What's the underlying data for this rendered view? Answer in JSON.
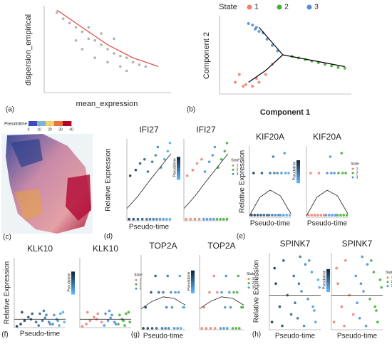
{
  "chart_data": [
    {
      "type": "scatter",
      "panel": "(a)",
      "x_label": "mean_expression",
      "y_label": "dispersion_empirical",
      "xlim": [
        0,
        1
      ],
      "ylim": [
        0,
        1
      ],
      "series": [
        {
          "color": "#a9a9a9",
          "x": [
            0.1,
            0.15,
            0.2,
            0.25,
            0.3,
            0.35,
            0.4,
            0.45,
            0.5,
            0.55,
            0.6,
            0.65,
            0.7,
            0.75,
            0.8,
            0.3,
            0.4,
            0.5,
            0.6,
            0.35,
            0.45,
            0.55,
            0.25,
            0.65
          ],
          "values": [
            0.92,
            0.85,
            0.8,
            0.75,
            0.7,
            0.62,
            0.6,
            0.55,
            0.5,
            0.45,
            0.42,
            0.4,
            0.35,
            0.32,
            0.3,
            0.5,
            0.4,
            0.35,
            0.3,
            0.75,
            0.68,
            0.62,
            0.6,
            0.25
          ]
        }
      ],
      "trends": [
        {
          "color": "#e8413a",
          "x": [
            0.1,
            0.3,
            0.5,
            0.7,
            0.9
          ],
          "values": [
            0.95,
            0.75,
            0.55,
            0.4,
            0.3
          ]
        }
      ]
    },
    {
      "type": "trajectory",
      "panel": "(b)",
      "x_label": "Component 1",
      "y_label": "Component 2",
      "legend_title": "State",
      "xlim": [
        0,
        1
      ],
      "ylim": [
        0,
        1
      ],
      "series": [
        {
          "name": "1",
          "color": "#f08070",
          "x": [
            0.12,
            0.15,
            0.2,
            0.25,
            0.3,
            0.35,
            0.4,
            0.18,
            0.28
          ],
          "values": [
            0.15,
            0.25,
            0.12,
            0.1,
            0.15,
            0.25,
            0.38,
            0.1,
            0.2
          ]
        },
        {
          "name": "2",
          "color": "#44b035",
          "x": [
            0.55,
            0.6,
            0.65,
            0.7,
            0.75,
            0.8,
            0.85,
            0.9,
            0.95
          ],
          "values": [
            0.48,
            0.46,
            0.44,
            0.42,
            0.4,
            0.38,
            0.36,
            0.34,
            0.33
          ]
        },
        {
          "name": "3",
          "color": "#4f8fdc",
          "x": [
            0.22,
            0.25,
            0.28,
            0.3,
            0.33,
            0.36,
            0.4,
            0.44,
            0.27
          ],
          "values": [
            0.9,
            0.88,
            0.85,
            0.8,
            0.78,
            0.7,
            0.62,
            0.55,
            0.83
          ]
        }
      ],
      "trends": [
        {
          "color": "#000000",
          "x": [
            0.22,
            0.35,
            0.48
          ],
          "values": [
            0.15,
            0.3,
            0.5
          ]
        },
        {
          "color": "#000000",
          "x": [
            0.48,
            0.95
          ],
          "values": [
            0.5,
            0.35
          ]
        },
        {
          "color": "#000000",
          "x": [
            0.48,
            0.3
          ],
          "values": [
            0.5,
            0.85
          ]
        }
      ]
    },
    {
      "type": "spatial",
      "panel": "(c)",
      "colorbar_title": "Pseudotime",
      "colorbar_ticks": [
        0,
        10,
        20,
        30,
        40
      ],
      "colorbar_colors": [
        "#3b4cc0",
        "#7fb3d5",
        "#f3d36b",
        "#e8743b",
        "#b40426"
      ]
    },
    {
      "type": "pseudotime",
      "panel": "(d)",
      "title": "IFI27",
      "x_label": "Pseudo-time",
      "y_label": "Relative Expression",
      "color_legend": "Pseudotime",
      "state_legend": "State",
      "xlim": [
        0,
        40
      ],
      "ylim": [
        0,
        1
      ],
      "pseudotime_colors": [
        "#132b43",
        "#56b1f7"
      ],
      "series": [
        {
          "name": "1",
          "color": "#f08070",
          "x": [
            2,
            6,
            10,
            14,
            3,
            8,
            12,
            16
          ],
          "values": [
            0.02,
            0.02,
            0.02,
            0.02,
            0.55,
            0.62,
            0.7,
            0.75
          ]
        },
        {
          "name": "2",
          "color": "#44b035",
          "x": [
            30,
            33,
            36,
            39,
            31,
            34,
            37,
            39
          ],
          "values": [
            0.02,
            0.02,
            0.02,
            0.02,
            0.65,
            0.75,
            0.85,
            0.95
          ]
        },
        {
          "name": "3",
          "color": "#4f8fdc",
          "x": [
            18,
            21,
            24,
            27,
            19,
            23,
            26,
            28
          ],
          "values": [
            0.02,
            0.02,
            0.02,
            0.02,
            0.6,
            0.72,
            0.8,
            0.9
          ]
        }
      ],
      "trends": [
        {
          "color": "#222222",
          "x": [
            0,
            10,
            20,
            30,
            40
          ],
          "values": [
            0.15,
            0.3,
            0.48,
            0.65,
            0.82
          ]
        }
      ]
    },
    {
      "type": "pseudotime",
      "panel": "(e)",
      "title": "KIF20A",
      "x_label": "Pseudo-time",
      "y_label": "Relative Expression",
      "color_legend": "Pseudotime",
      "state_legend": "State",
      "xlim": [
        0,
        40
      ],
      "ylim": [
        0,
        1
      ],
      "pseudotime_colors": [
        "#132b43",
        "#56b1f7"
      ],
      "series": [
        {
          "name": "1",
          "color": "#f08070",
          "x": [
            2,
            5,
            8,
            11,
            14,
            17,
            4,
            12
          ],
          "values": [
            0.03,
            0.03,
            0.03,
            0.03,
            0.03,
            0.03,
            0.62,
            0.62
          ]
        },
        {
          "name": "2",
          "color": "#44b035",
          "x": [
            30,
            33,
            36,
            39,
            31,
            35,
            38,
            34
          ],
          "values": [
            0.03,
            0.03,
            0.03,
            0.03,
            0.62,
            0.62,
            0.62,
            0.9
          ]
        },
        {
          "name": "3",
          "color": "#4f8fdc",
          "x": [
            19,
            22,
            25,
            28,
            20,
            24,
            27,
            23
          ],
          "values": [
            0.03,
            0.03,
            0.03,
            0.03,
            0.62,
            0.62,
            0.62,
            0.85
          ]
        }
      ],
      "trends": [
        {
          "color": "#222222",
          "x": [
            0,
            10,
            20,
            30,
            40
          ],
          "values": [
            0.02,
            0.28,
            0.38,
            0.3,
            0.05
          ]
        }
      ]
    },
    {
      "type": "pseudotime",
      "panel": "(f)",
      "title": "KLK10",
      "x_label": "Pseudo-time",
      "y_label": "Relative Expression",
      "color_legend": "Pseudotime",
      "state_legend": "State",
      "xlim": [
        0,
        40
      ],
      "ylim": [
        0,
        1
      ],
      "pseudotime_colors": [
        "#132b43",
        "#56b1f7"
      ],
      "series": [
        {
          "name": "1",
          "color": "#f08070",
          "x": [
            2,
            5,
            8,
            11,
            14,
            17,
            6,
            13
          ],
          "values": [
            0.02,
            0.05,
            0.1,
            0.15,
            0.2,
            0.08,
            0.22,
            0.12
          ]
        },
        {
          "name": "2",
          "color": "#44b035",
          "x": [
            30,
            33,
            36,
            39,
            31,
            35,
            38,
            34
          ],
          "values": [
            0.05,
            0.12,
            0.2,
            0.08,
            0.18,
            0.03,
            0.22,
            0.1
          ]
        },
        {
          "name": "3",
          "color": "#4f8fdc",
          "x": [
            19,
            22,
            25,
            28,
            20,
            24,
            27,
            23
          ],
          "values": [
            0.03,
            0.1,
            0.18,
            0.05,
            0.2,
            0.14,
            0.08,
            0.24
          ]
        }
      ],
      "trends": [
        {
          "color": "#222222",
          "x": [
            0,
            20,
            40
          ],
          "values": [
            0.12,
            0.12,
            0.12
          ]
        }
      ]
    },
    {
      "type": "pseudotime",
      "panel": "(g)",
      "title": "TOP2A",
      "x_label": "Pseudo-time",
      "color_legend": "Pseudotime",
      "state_legend": "State",
      "xlim": [
        0,
        40
      ],
      "ylim": [
        0,
        1
      ],
      "pseudotime_colors": [
        "#132b43",
        "#56b1f7"
      ],
      "series": [
        {
          "name": "1",
          "color": "#f08070",
          "x": [
            2,
            6,
            10,
            14,
            4,
            9,
            13,
            16
          ],
          "values": [
            0.02,
            0.02,
            0.02,
            0.02,
            0.3,
            0.5,
            0.72,
            0.5
          ]
        },
        {
          "name": "2",
          "color": "#44b035",
          "x": [
            30,
            33,
            36,
            39,
            31,
            35,
            38,
            34
          ],
          "values": [
            0.02,
            0.02,
            0.02,
            0.3,
            0.5,
            0.72,
            0.3,
            0.5
          ]
        },
        {
          "name": "3",
          "color": "#4f8fdc",
          "x": [
            19,
            22,
            25,
            28,
            20,
            24,
            27,
            23
          ],
          "values": [
            0.02,
            0.02,
            0.02,
            0.3,
            0.5,
            0.72,
            0.5,
            0.3
          ]
        }
      ],
      "trends": [
        {
          "color": "#222222",
          "x": [
            0,
            10,
            20,
            30,
            40
          ],
          "values": [
            0.28,
            0.38,
            0.44,
            0.42,
            0.33
          ]
        }
      ]
    },
    {
      "type": "pseudotime",
      "panel": "(h)",
      "title": "SPINK7",
      "x_label": "Pseudo-time",
      "y_label": "Relative Expression",
      "color_legend": "Pseudotime",
      "state_legend": "State",
      "xlim": [
        0,
        40
      ],
      "ylim": [
        0,
        1
      ],
      "pseudotime_colors": [
        "#132b43",
        "#56b1f7"
      ],
      "series": [
        {
          "name": "1",
          "color": "#f08070",
          "x": [
            2,
            5,
            8,
            11,
            14,
            17,
            4,
            10
          ],
          "values": [
            0.1,
            0.6,
            0.3,
            0.9,
            0.45,
            0.2,
            0.8,
            0.05
          ]
        },
        {
          "name": "2",
          "color": "#44b035",
          "x": [
            30,
            33,
            36,
            39,
            31,
            35,
            38,
            34
          ],
          "values": [
            0.4,
            0.75,
            0.1,
            0.55,
            0.9,
            0.25,
            0.65,
            0.3
          ]
        },
        {
          "name": "3",
          "color": "#4f8fdc",
          "x": [
            19,
            22,
            25,
            28,
            20,
            24,
            27,
            23
          ],
          "values": [
            0.7,
            0.15,
            0.5,
            0.85,
            0.35,
            0.95,
            0.05,
            0.6
          ]
        }
      ],
      "trends": [
        {
          "color": "#222222",
          "x": [
            0,
            20,
            40
          ],
          "values": [
            0.45,
            0.45,
            0.45
          ]
        }
      ]
    }
  ]
}
